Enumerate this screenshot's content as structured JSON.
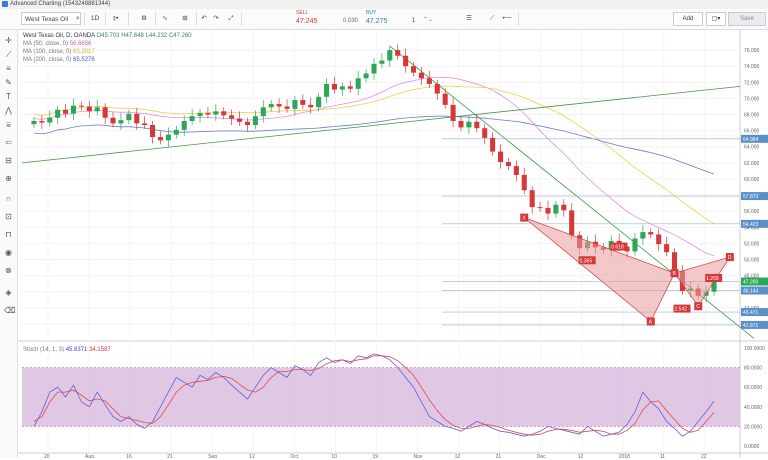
{
  "window": {
    "title": "Advanced Charting (1543248881344)"
  },
  "toolbar": {
    "symbol": "West Texas Oil",
    "interval": "1D",
    "sell_label": "SELL",
    "sell_price": "47.245",
    "spread": "0.030",
    "buy_label": "BUY",
    "buy_price": "47.275",
    "quantity": "1",
    "layout_select": "Add",
    "save_label": "Save"
  },
  "colors": {
    "up": "#2ea65a",
    "down": "#d43838",
    "ma50": "#ea8ae8",
    "ma100": "#e4d44a",
    "ma200": "#6b78d6",
    "trend": "#3f9a3f",
    "stoch": "#6a5adf",
    "stoch_signal": "#e04a4a",
    "stoch_band": "#d6b5dc"
  },
  "legend": {
    "main": "West Texas Oil, D, OANDA",
    "o_label": "O",
    "o_val": "45.703",
    "h_label": "H",
    "h_val": "47.648",
    "l_label": "L",
    "l_val": "44.232",
    "c_label": "C",
    "c_val": "47.260",
    "ma1": "MA (50, close, 0)",
    "ma1_val": "56.6656",
    "ma2": "MA (100, close, 0)",
    "ma2_val": "63.2017",
    "ma3": "MA (200, close, 0)",
    "ma3_val": "65.5276",
    "stoch": "Stoch (14, 1, 3)",
    "stoch_k": "45.8371",
    "stoch_d": "34.1587"
  },
  "chart_data": {
    "type": "candlestick",
    "ylim": [
      40,
      78
    ],
    "price_ticks": [
      "76.000",
      "74.000",
      "72.000",
      "70.000",
      "68.000",
      "66.000",
      "64.000",
      "62.000",
      "60.000",
      "58.000",
      "56.000",
      "54.000",
      "52.000",
      "50.000",
      "48.000",
      "46.000",
      "44.000",
      "42.000"
    ],
    "price_labels": [
      "64.984",
      "57.873",
      "54.423",
      "47.260",
      "46.144",
      "43.471",
      "41.871"
    ],
    "x_labels": [
      "20",
      "Aug",
      "16",
      "21",
      "Sep",
      "12",
      "Oct",
      "10",
      "19",
      "Nov",
      "12",
      "21",
      "Dec",
      "12",
      "2018",
      "11",
      "22"
    ],
    "stoch_ticks": [
      "100.0000",
      "80.0000",
      "60.0000",
      "40.0000",
      "20.0000",
      "0.0000"
    ],
    "pattern_labels": [
      "X",
      "A",
      "B",
      "C",
      "D"
    ],
    "ratio_labels": [
      "0.618",
      "0.365",
      "1.269",
      "2.542"
    ],
    "closes": [
      67.2,
      67.0,
      67.6,
      68.6,
      68.1,
      69.1,
      69.0,
      68.4,
      68.9,
      67.6,
      66.9,
      67.3,
      68.1,
      66.9,
      66.7,
      65.2,
      64.8,
      65.5,
      66.1,
      67.2,
      67.8,
      68.2,
      68.0,
      68.4,
      67.9,
      67.5,
      67.1,
      66.7,
      67.8,
      68.9,
      69.3,
      69.0,
      68.7,
      69.8,
      69.2,
      68.9,
      70.2,
      71.8,
      71.1,
      71.5,
      71.2,
      72.5,
      73.1,
      74.3,
      74.7,
      76.0,
      75.3,
      74.0,
      73.2,
      72.5,
      71.8,
      70.6,
      69.2,
      67.2,
      66.4,
      67.1,
      66.3,
      65.1,
      63.4,
      62.1,
      61.6,
      60.5,
      58.6,
      56.5,
      56.4,
      55.7,
      56.8,
      56.1,
      53.0,
      51.4,
      52.2,
      51.5,
      51.2,
      52.3,
      51.6,
      51.0,
      52.6,
      53.4,
      53.1,
      51.9,
      50.9,
      48.6,
      46.1,
      46.4,
      45.5,
      46.0,
      47.26
    ],
    "stoch_k": [
      20,
      35,
      55,
      60,
      50,
      62,
      45,
      40,
      55,
      42,
      30,
      25,
      30,
      22,
      18,
      25,
      40,
      55,
      70,
      65,
      60,
      72,
      68,
      75,
      70,
      62,
      55,
      48,
      60,
      72,
      80,
      75,
      70,
      82,
      78,
      72,
      85,
      90,
      85,
      88,
      84,
      92,
      90,
      94,
      92,
      88,
      80,
      70,
      60,
      45,
      30,
      25,
      20,
      18,
      15,
      20,
      25,
      22,
      18,
      15,
      14,
      12,
      10,
      12,
      15,
      20,
      18,
      16,
      14,
      12,
      20,
      15,
      10,
      12,
      14,
      22,
      35,
      55,
      45,
      38,
      25,
      18,
      10,
      15,
      25,
      35,
      45.8
    ],
    "stoch_d": [
      25,
      30,
      45,
      55,
      55,
      57,
      52,
      46,
      48,
      46,
      38,
      30,
      28,
      26,
      24,
      23,
      30,
      42,
      55,
      62,
      65,
      66,
      67,
      70,
      71,
      69,
      63,
      57,
      55,
      60,
      70,
      76,
      76,
      78,
      78,
      77,
      79,
      84,
      87,
      88,
      86,
      88,
      89,
      92,
      92,
      91,
      87,
      80,
      72,
      60,
      47,
      36,
      27,
      21,
      18,
      18,
      20,
      22,
      21,
      19,
      16,
      14,
      12,
      11,
      12,
      15,
      17,
      17,
      16,
      14,
      15,
      16,
      15,
      12,
      12,
      16,
      23,
      37,
      45,
      46,
      36,
      27,
      18,
      14,
      16,
      25,
      34.2
    ]
  }
}
